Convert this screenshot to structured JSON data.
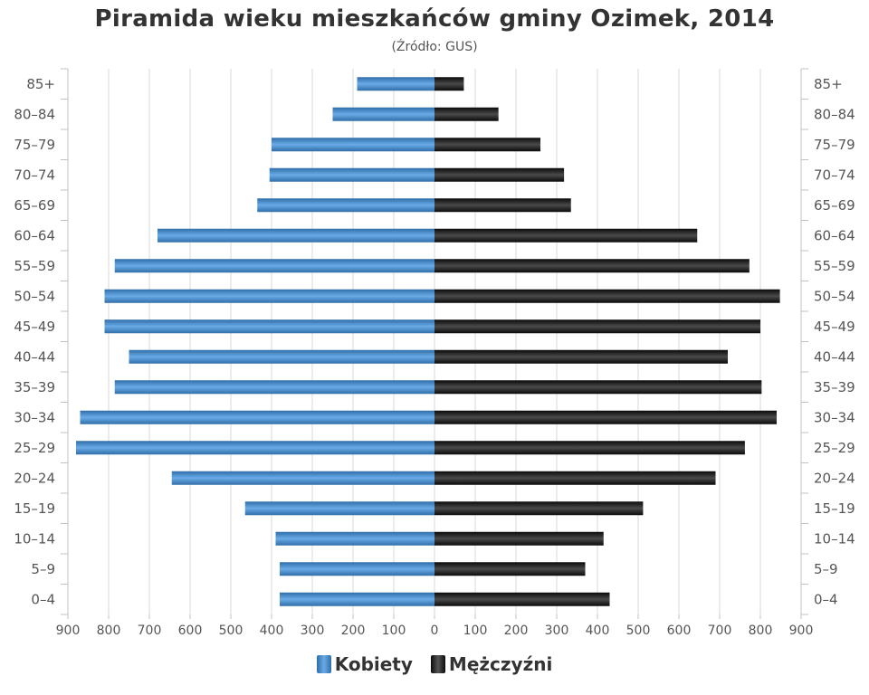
{
  "header": {
    "title": "Piramida wieku mieszkańców gminy Ozimek, 2014",
    "subtitle": "(Źródło: GUS)"
  },
  "legend": {
    "female": "Kobiety",
    "male": "Mężczyźni"
  },
  "colors": {
    "female": "#4a8ccc",
    "male": "#1a1a1a",
    "grid": "#d8d8d8"
  },
  "chart_data": {
    "type": "bar",
    "orientation": "horizontal-pyramid",
    "title": "Piramida wieku mieszkańców gminy Ozimek, 2014",
    "subtitle": "(Źródło: GUS)",
    "categories": [
      "85+",
      "80–84",
      "75–79",
      "70–74",
      "65–69",
      "60–64",
      "55–59",
      "50–54",
      "45–49",
      "40–44",
      "35–39",
      "30–34",
      "25–29",
      "20–24",
      "15–19",
      "10–14",
      "5–9",
      "0–4"
    ],
    "series": [
      {
        "name": "Kobiety",
        "values": [
          190,
          250,
          400,
          405,
          435,
          680,
          785,
          810,
          810,
          750,
          785,
          870,
          880,
          645,
          465,
          390,
          380,
          380
        ]
      },
      {
        "name": "Mężczyźni",
        "values": [
          72,
          157,
          260,
          318,
          335,
          645,
          773,
          848,
          800,
          720,
          803,
          840,
          762,
          690,
          512,
          415,
          370,
          430
        ]
      }
    ],
    "xlim": [
      -900,
      900
    ],
    "xticks": [
      "900",
      "800",
      "700",
      "600",
      "500",
      "400",
      "300",
      "200",
      "100",
      "0",
      "100",
      "200",
      "300",
      "400",
      "500",
      "600",
      "700",
      "800",
      "900"
    ],
    "grid": true,
    "legend_position": "bottom"
  }
}
